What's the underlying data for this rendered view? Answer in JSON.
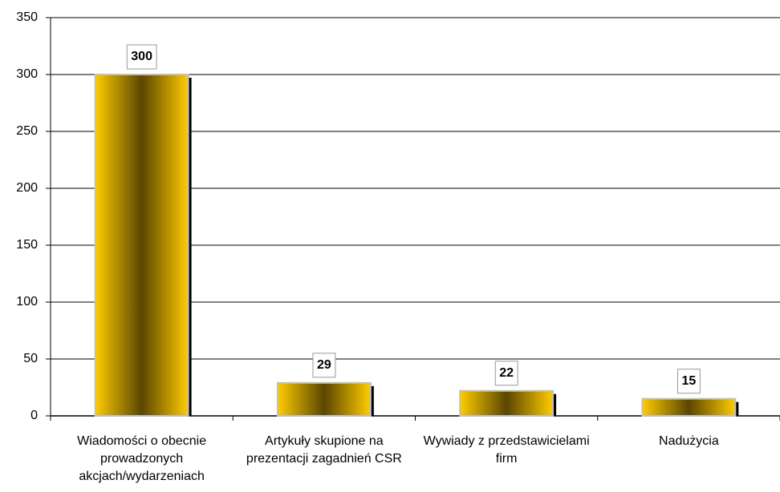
{
  "chart_data": {
    "type": "bar",
    "categories": [
      "Wiadomości o obecnie prowadzonych akcjach/wydarzeniach",
      "Artykuły skupione na prezentacji zagadnień CSR",
      "Wywiady z przedstawicielami firm",
      "Nadużycia"
    ],
    "values": [
      300,
      29,
      22,
      15
    ],
    "color": "#ffcc00",
    "ylim": [
      0,
      350
    ],
    "yticks": [
      0,
      50,
      100,
      150,
      200,
      250,
      300,
      350
    ],
    "grid": true
  }
}
